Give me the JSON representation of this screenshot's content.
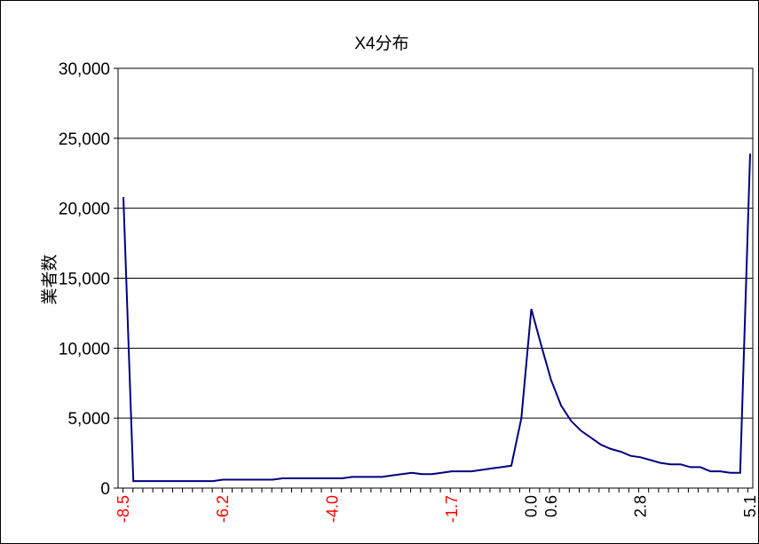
{
  "chart_data": {
    "type": "line",
    "title": "X4分布",
    "ylabel": "業者数",
    "xlabel": "",
    "ylim": [
      0,
      30000
    ],
    "yticks": [
      0,
      5000,
      10000,
      15000,
      20000,
      25000,
      30000
    ],
    "ytick_labels": [
      "0",
      "5,000",
      "10,000",
      "15,000",
      "20,000",
      "25,000",
      "30,000"
    ],
    "grid": "horizontal",
    "legend": "none",
    "x_tick_labels": [
      {
        "index": 0,
        "label": "-8.5",
        "color": "#ff0000"
      },
      {
        "index": 10,
        "label": "-6.2",
        "color": "#ff0000"
      },
      {
        "index": 21,
        "label": "-4.0",
        "color": "#ff0000"
      },
      {
        "index": 33,
        "label": "-1.7",
        "color": "#ff0000"
      },
      {
        "index": 41,
        "label": "0.0",
        "color": "#000000"
      },
      {
        "index": 43,
        "label": "0.6",
        "color": "#000000"
      },
      {
        "index": 52,
        "label": "2.8",
        "color": "#000000"
      },
      {
        "index": 63,
        "label": "5.1",
        "color": "#000000"
      }
    ],
    "series": [
      {
        "color": "#000080",
        "values": [
          20800,
          500,
          500,
          500,
          500,
          500,
          500,
          500,
          500,
          500,
          600,
          600,
          600,
          600,
          600,
          600,
          700,
          700,
          700,
          700,
          700,
          700,
          700,
          800,
          800,
          800,
          800,
          900,
          1000,
          1100,
          1000,
          1000,
          1100,
          1200,
          1200,
          1200,
          1300,
          1400,
          1500,
          1600,
          5000,
          12800,
          10200,
          7700,
          5900,
          4800,
          4100,
          3600,
          3100,
          2800,
          2600,
          2300,
          2200,
          2000,
          1800,
          1700,
          1700,
          1500,
          1500,
          1200,
          1200,
          1100,
          1100,
          23900
        ]
      }
    ]
  }
}
